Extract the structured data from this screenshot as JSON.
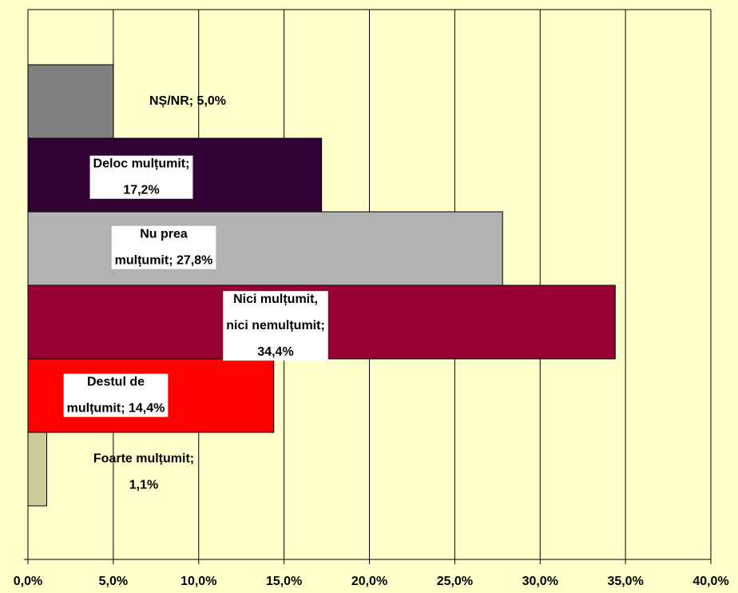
{
  "chart_data": {
    "type": "barh",
    "values": [
      5.0,
      17.2,
      27.8,
      34.4,
      14.4,
      1.1
    ],
    "value_labels": [
      "NȘ/NR; 5,0%",
      "Deloc mulțumit;\n17,2%",
      "Nu prea\nmulțumit; 27,8%",
      "Nici mulțumit,\nnici nemulțumit;\n34,4%",
      "Destul de\nmulțumit; 14,4%",
      "Foarte mulțumit;\n1,1%"
    ],
    "colors": [
      "#808080",
      "#330033",
      "#b2b2b2",
      "#990033",
      "#ff0000",
      "#cccc99"
    ],
    "xlim": [
      0,
      40
    ],
    "xticks": [
      {
        "value": 0,
        "label": "0,0%"
      },
      {
        "value": 5,
        "label": "5,0%"
      },
      {
        "value": 10,
        "label": "10,0%"
      },
      {
        "value": 15,
        "label": "15,0%"
      },
      {
        "value": 20,
        "label": "20,0%"
      },
      {
        "value": 25,
        "label": "25,0%"
      },
      {
        "value": 30,
        "label": "30,0%"
      },
      {
        "value": 35,
        "label": "35,0%"
      },
      {
        "value": 40,
        "label": "40,0%"
      }
    ],
    "grid": true
  }
}
